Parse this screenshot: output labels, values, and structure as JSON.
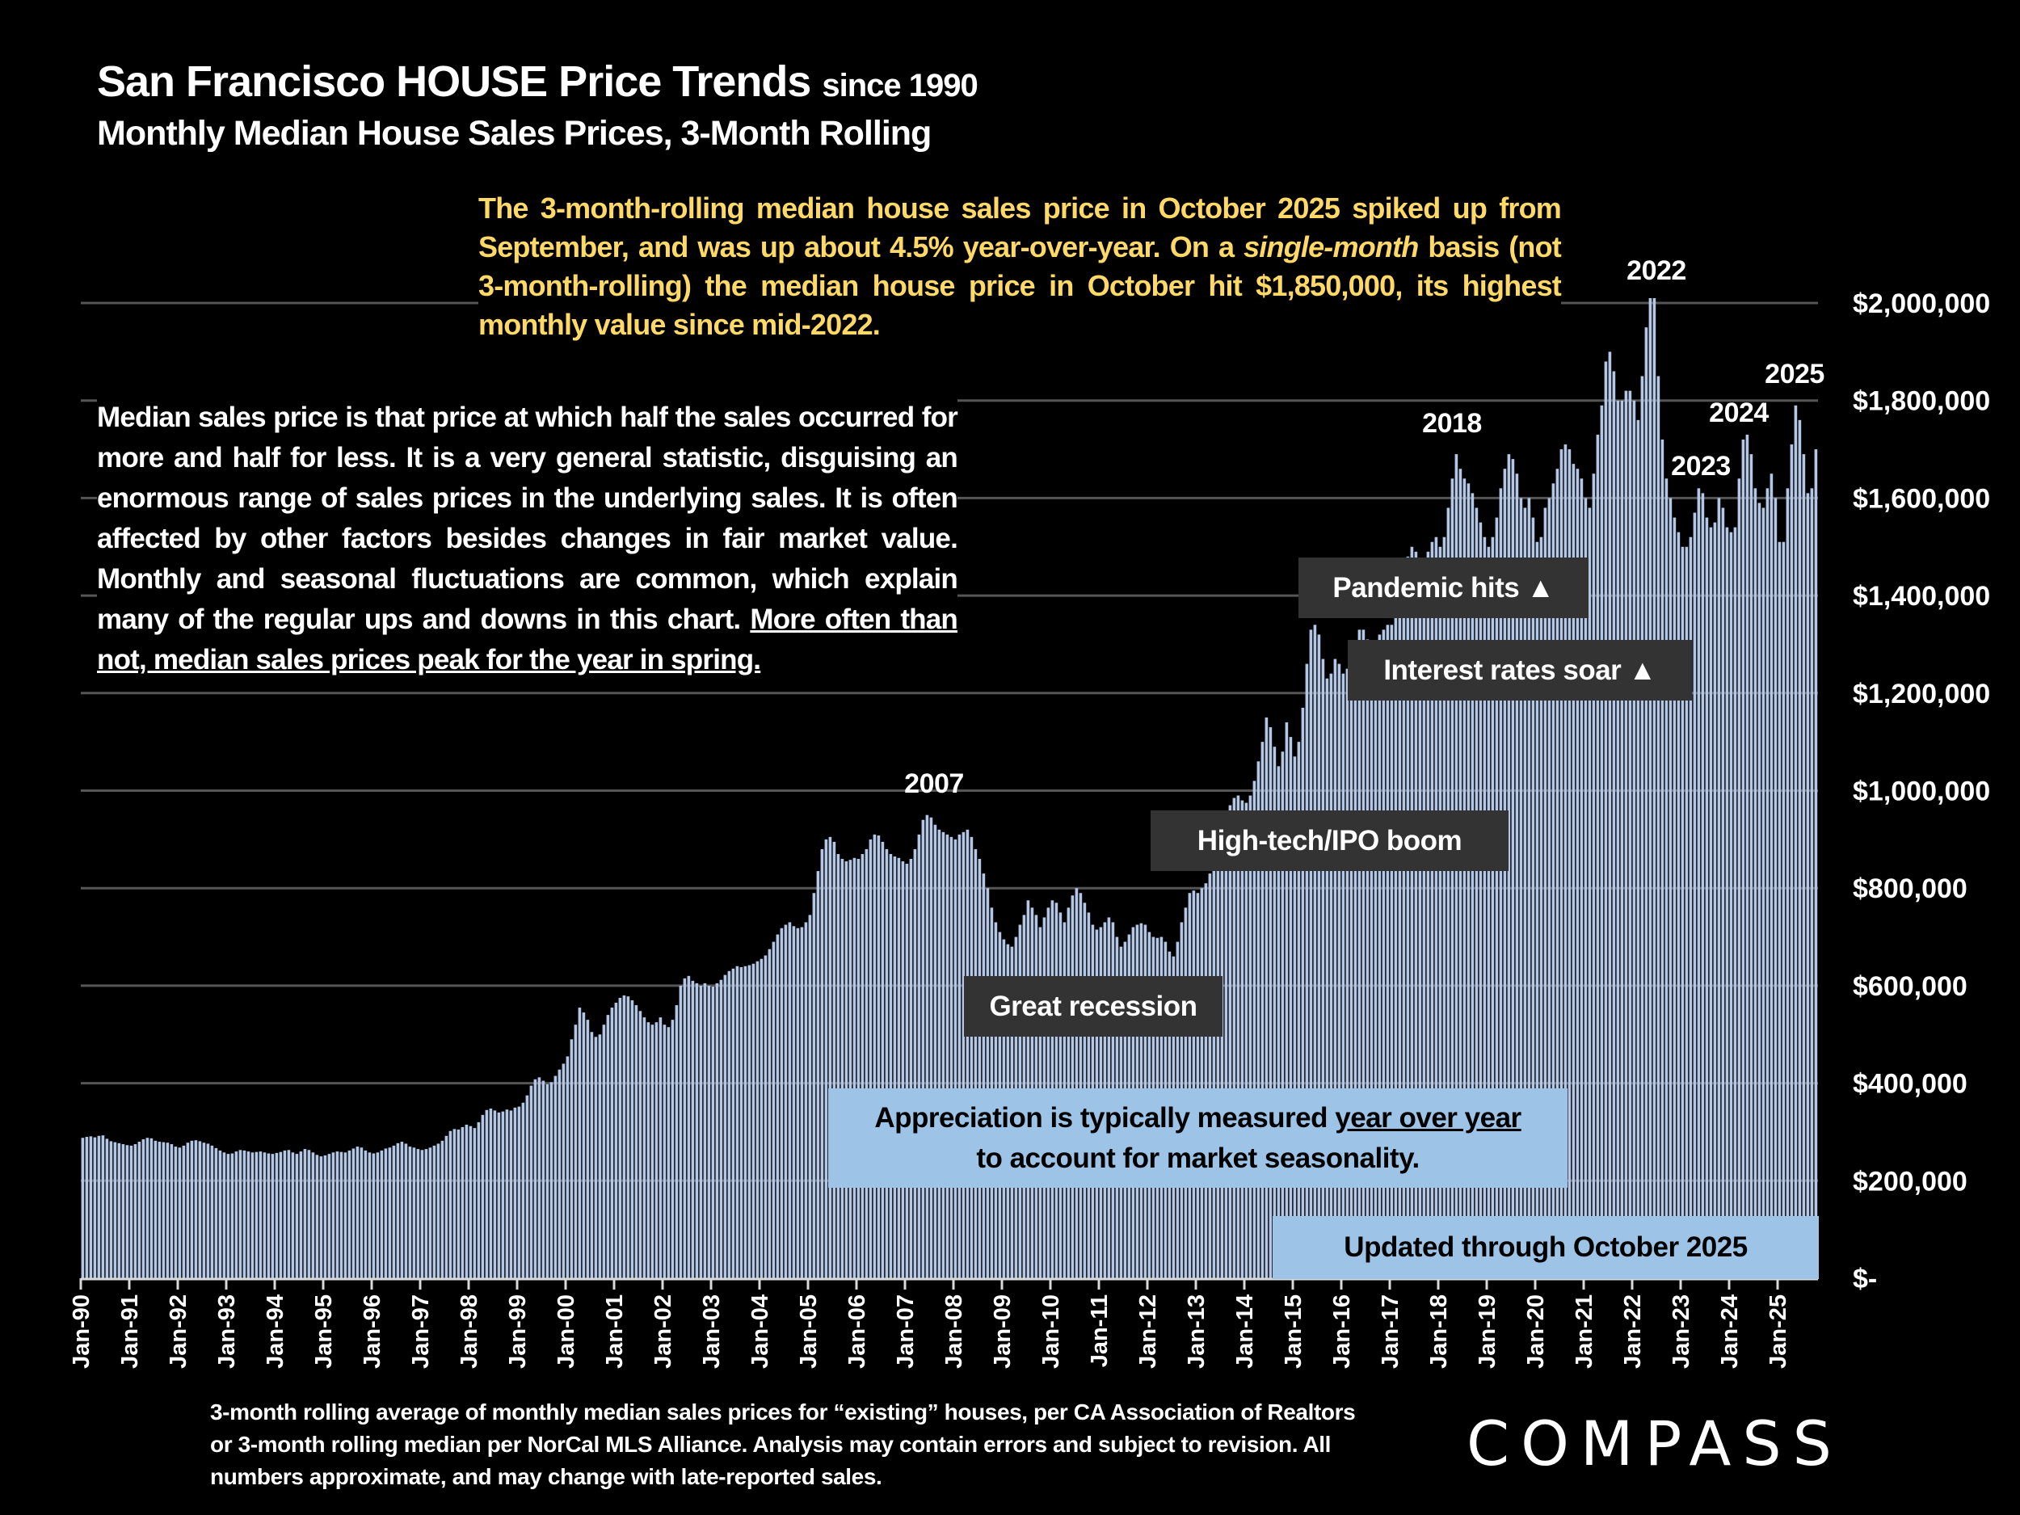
{
  "header": {
    "title_main": "San Francisco HOUSE Price Trends",
    "title_suffix": "since 1990",
    "subtitle": "Monthly Median House Sales Prices, 3-Month Rolling"
  },
  "annotations": {
    "yellow_note": {
      "part1": "The 3-month-rolling median house sales price in October 2025 spiked up from September, and was up about 4.5% year-over-year. On a ",
      "italic": "single-month",
      "part2": " basis (not 3-month-rolling) the median house price in October hit $1,850,000, its highest monthly value since mid-2022."
    },
    "left_note": {
      "plain": "Median sales price is that price at which half the sales occurred for more and half for less. It is a very general statistic, disguising an enormous range of sales prices in the underlying sales. It is often affected by other factors besides changes in fair market value. Monthly and seasonal fluctuations are common, which explain many of the regular ups and downs in this chart. ",
      "underlined": "More often than not, median sales prices peak for the year in spring."
    },
    "year_labels": [
      "2007",
      "2018",
      "2022",
      "2023",
      "2024",
      "2025"
    ],
    "pandemic": "Pandemic hits ▲",
    "interest": "Interest rates soar ▲",
    "hightech": "High-tech/IPO boom",
    "recession": "Great recession",
    "appreciation": {
      "part1": "Appreciation is typically measured ",
      "underlined": "year over year",
      "line2": "to account for market seasonality."
    },
    "updated": "Updated through October 2025"
  },
  "footnote": "3-month rolling average of monthly median sales prices for “existing” houses, per CA Association of Realtors or 3-month rolling median per NorCal MLS Alliance. Analysis may contain errors and subject to revision. All numbers approximate, and may change with late-reported sales.",
  "logo": "COMPASS",
  "colors": {
    "bars": "#B4C7E7",
    "background": "#000000",
    "highlight_text": "#FFD966",
    "callout_dark": "#333333",
    "callout_blue": "#9DC3E6",
    "grid": "#555555"
  },
  "chart_data": {
    "type": "bar",
    "title": "San Francisco HOUSE Price Trends since 1990",
    "subtitle": "Monthly Median House Sales Prices, 3-Month Rolling",
    "xlabel": "",
    "ylabel": "",
    "start_month": "Jan-90",
    "end_month": "Oct-25",
    "x_tick_labels": [
      "Jan-90",
      "Jan-91",
      "Jan-92",
      "Jan-93",
      "Jan-94",
      "Jan-95",
      "Jan-96",
      "Jan-97",
      "Jan-98",
      "Jan-99",
      "Jan-00",
      "Jan-01",
      "Jan-02",
      "Jan-03",
      "Jan-04",
      "Jan-05",
      "Jan-06",
      "Jan-07",
      "Jan-08",
      "Jan-09",
      "Jan-10",
      "Jan-11",
      "Jan-12",
      "Jan-13",
      "Jan-14",
      "Jan-15",
      "Jan-16",
      "Jan-17",
      "Jan-18",
      "Jan-19",
      "Jan-20",
      "Jan-21",
      "Jan-22",
      "Jan-23",
      "Jan-24",
      "Jan-25"
    ],
    "y_tick_labels": [
      "$-",
      "$200,000",
      "$400,000",
      "$600,000",
      "$800,000",
      "$1,000,000",
      "$1,200,000",
      "$1,400,000",
      "$1,600,000",
      "$1,800,000",
      "$2,000,000"
    ],
    "y_ticks": [
      0,
      200000,
      400000,
      600000,
      800000,
      1000000,
      1200000,
      1400000,
      1600000,
      1800000,
      2000000
    ],
    "ylim": [
      0,
      2000000
    ],
    "grid": true,
    "legend": "none",
    "values": [
      288000,
      290000,
      291000,
      289000,
      292000,
      293000,
      286000,
      281000,
      279000,
      277000,
      275000,
      273000,
      272000,
      275000,
      280000,
      285000,
      288000,
      287000,
      282000,
      280000,
      279000,
      278000,
      275000,
      270000,
      268000,
      272000,
      278000,
      282000,
      283000,
      281000,
      278000,
      276000,
      272000,
      267000,
      262000,
      258000,
      255000,
      256000,
      260000,
      263000,
      262000,
      260000,
      258000,
      259000,
      260000,
      258000,
      256000,
      255000,
      257000,
      259000,
      262000,
      263000,
      258000,
      255000,
      260000,
      265000,
      263000,
      258000,
      253000,
      250000,
      252000,
      255000,
      258000,
      260000,
      259000,
      258000,
      262000,
      266000,
      270000,
      268000,
      262000,
      258000,
      256000,
      258000,
      262000,
      266000,
      268000,
      272000,
      277000,
      280000,
      276000,
      270000,
      268000,
      265000,
      263000,
      265000,
      268000,
      272000,
      276000,
      282000,
      292000,
      302000,
      306000,
      305000,
      310000,
      315000,
      312000,
      308000,
      320000,
      335000,
      345000,
      348000,
      344000,
      340000,
      342000,
      346000,
      344000,
      350000,
      352000,
      360000,
      375000,
      395000,
      408000,
      412000,
      405000,
      398000,
      402000,
      415000,
      428000,
      440000,
      455000,
      490000,
      520000,
      555000,
      545000,
      530000,
      505000,
      495000,
      500000,
      520000,
      540000,
      555000,
      565000,
      575000,
      580000,
      578000,
      570000,
      560000,
      548000,
      535000,
      525000,
      520000,
      525000,
      535000,
      520000,
      515000,
      530000,
      560000,
      600000,
      615000,
      620000,
      610000,
      605000,
      600000,
      605000,
      600000,
      598000,
      605000,
      612000,
      622000,
      630000,
      635000,
      640000,
      638000,
      640000,
      642000,
      645000,
      650000,
      655000,
      662000,
      675000,
      690000,
      705000,
      718000,
      725000,
      730000,
      722000,
      718000,
      720000,
      730000,
      745000,
      790000,
      835000,
      880000,
      900000,
      905000,
      895000,
      870000,
      860000,
      855000,
      858000,
      862000,
      860000,
      870000,
      880000,
      900000,
      910000,
      908000,
      895000,
      880000,
      870000,
      865000,
      862000,
      855000,
      850000,
      860000,
      880000,
      910000,
      940000,
      950000,
      945000,
      930000,
      920000,
      915000,
      910000,
      905000,
      900000,
      910000,
      915000,
      920000,
      905000,
      880000,
      860000,
      830000,
      800000,
      760000,
      730000,
      710000,
      695000,
      685000,
      680000,
      700000,
      725000,
      745000,
      775000,
      760000,
      745000,
      720000,
      740000,
      760000,
      775000,
      770000,
      750000,
      730000,
      760000,
      785000,
      800000,
      790000,
      770000,
      750000,
      725000,
      715000,
      720000,
      730000,
      740000,
      730000,
      700000,
      680000,
      690000,
      705000,
      720000,
      725000,
      728000,
      725000,
      710000,
      700000,
      698000,
      700000,
      690000,
      670000,
      660000,
      690000,
      730000,
      760000,
      790000,
      795000,
      790000,
      800000,
      810000,
      830000,
      860000,
      880000,
      910000,
      940000,
      970000,
      985000,
      990000,
      980000,
      975000,
      990000,
      1020000,
      1060000,
      1100000,
      1150000,
      1130000,
      1090000,
      1050000,
      1080000,
      1140000,
      1110000,
      1070000,
      1100000,
      1170000,
      1260000,
      1330000,
      1340000,
      1320000,
      1270000,
      1230000,
      1240000,
      1270000,
      1260000,
      1240000,
      1250000,
      1280000,
      1300000,
      1330000,
      1330000,
      1310000,
      1290000,
      1300000,
      1320000,
      1330000,
      1340000,
      1340000,
      1360000,
      1400000,
      1450000,
      1480000,
      1500000,
      1490000,
      1460000,
      1470000,
      1490000,
      1510000,
      1520000,
      1500000,
      1520000,
      1580000,
      1640000,
      1690000,
      1660000,
      1640000,
      1630000,
      1610000,
      1580000,
      1550000,
      1520000,
      1500000,
      1520000,
      1560000,
      1620000,
      1660000,
      1690000,
      1680000,
      1650000,
      1600000,
      1580000,
      1600000,
      1560000,
      1510000,
      1520000,
      1580000,
      1600000,
      1630000,
      1660000,
      1700000,
      1710000,
      1700000,
      1670000,
      1660000,
      1640000,
      1600000,
      1580000,
      1650000,
      1730000,
      1790000,
      1880000,
      1900000,
      1860000,
      1800000,
      1800000,
      1820000,
      1820000,
      1800000,
      1760000,
      1850000,
      1950000,
      2010000,
      2010000,
      1850000,
      1720000,
      1640000,
      1600000,
      1560000,
      1530000,
      1500000,
      1500000,
      1520000,
      1570000,
      1620000,
      1610000,
      1560000,
      1540000,
      1550000,
      1600000,
      1580000,
      1540000,
      1530000,
      1540000,
      1640000,
      1720000,
      1730000,
      1690000,
      1620000,
      1590000,
      1580000,
      1620000,
      1650000,
      1600000,
      1510000,
      1510000,
      1620000,
      1710000,
      1790000,
      1760000,
      1690000,
      1610000,
      1620000,
      1700000
    ]
  }
}
